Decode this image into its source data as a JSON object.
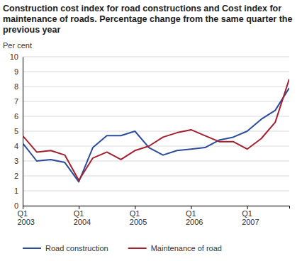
{
  "chart_data": {
    "type": "line",
    "title": "Construction cost index for road constructions and Cost index for maintenance of roads. Percentage change from the same quarter the previous year",
    "y_label": "Per cent",
    "categories": [
      "Q1 2003",
      null,
      null,
      null,
      "Q1 2004",
      null,
      null,
      null,
      "Q1 2005",
      null,
      null,
      null,
      "Q1 2006",
      null,
      null,
      null,
      "Q1 2007",
      null,
      null,
      null
    ],
    "series": [
      {
        "name": "Road construction",
        "color": "#2b4c9b",
        "values": [
          4.2,
          3.0,
          3.1,
          2.9,
          1.6,
          3.9,
          4.7,
          4.7,
          5.0,
          3.9,
          3.4,
          3.7,
          3.8,
          3.9,
          4.4,
          4.6,
          5.0,
          5.8,
          6.4,
          7.9
        ]
      },
      {
        "name": "Maintenance of road",
        "color": "#a3202f",
        "values": [
          4.7,
          3.6,
          3.7,
          3.4,
          1.7,
          3.2,
          3.6,
          3.1,
          3.7,
          4.0,
          4.6,
          4.9,
          5.1,
          4.7,
          4.3,
          4.3,
          3.8,
          4.5,
          5.6,
          8.5
        ]
      }
    ],
    "ylim": [
      0,
      10
    ],
    "yticks": [
      0,
      1,
      2,
      3,
      4,
      5,
      6,
      7,
      8,
      9,
      10
    ],
    "grid": true,
    "legend": "bottom"
  }
}
